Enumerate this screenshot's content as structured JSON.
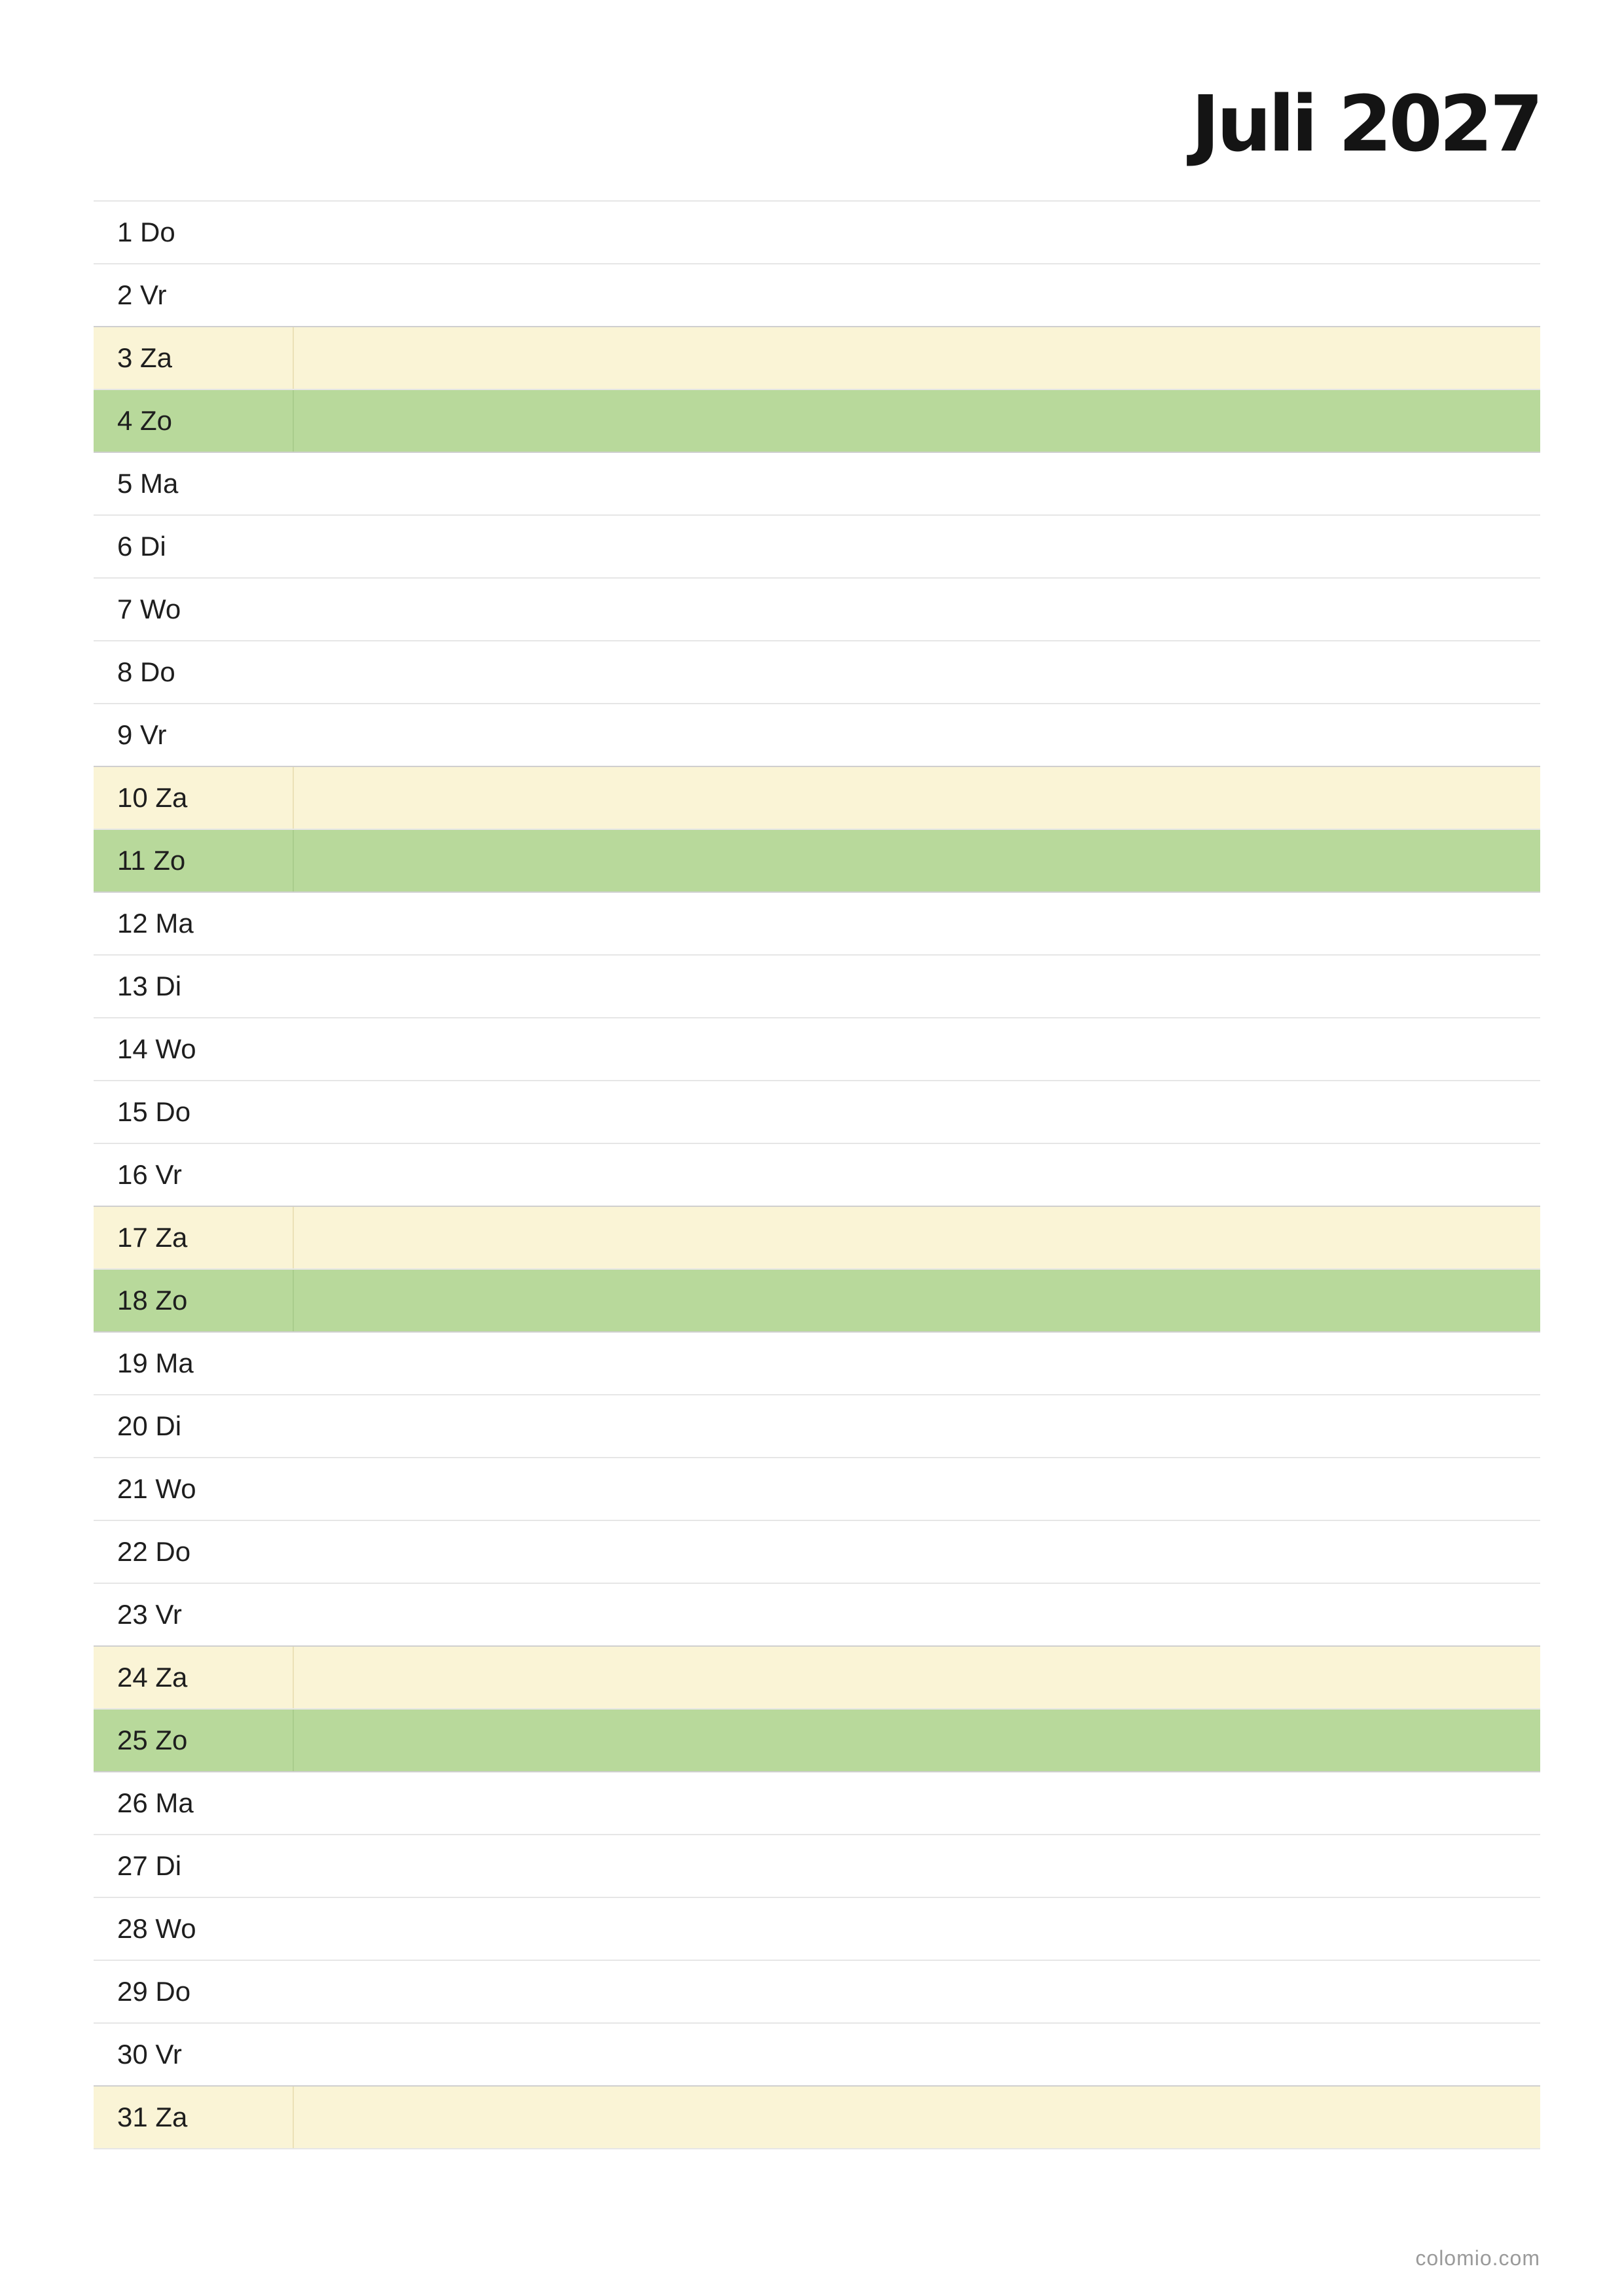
{
  "title": "Juli 2027",
  "footer": "colomio.com",
  "colors": {
    "saturday": "#faf4d6",
    "sunday": "#b8d99b",
    "divider": "#e6e6e6"
  },
  "days": [
    {
      "label": "1 Do",
      "type": "weekday"
    },
    {
      "label": "2 Vr",
      "type": "weekday"
    },
    {
      "label": "3 Za",
      "type": "sat"
    },
    {
      "label": "4 Zo",
      "type": "sun"
    },
    {
      "label": "5 Ma",
      "type": "weekday"
    },
    {
      "label": "6 Di",
      "type": "weekday"
    },
    {
      "label": "7 Wo",
      "type": "weekday"
    },
    {
      "label": "8 Do",
      "type": "weekday"
    },
    {
      "label": "9 Vr",
      "type": "weekday"
    },
    {
      "label": "10 Za",
      "type": "sat"
    },
    {
      "label": "11 Zo",
      "type": "sun"
    },
    {
      "label": "12 Ma",
      "type": "weekday"
    },
    {
      "label": "13 Di",
      "type": "weekday"
    },
    {
      "label": "14 Wo",
      "type": "weekday"
    },
    {
      "label": "15 Do",
      "type": "weekday"
    },
    {
      "label": "16 Vr",
      "type": "weekday"
    },
    {
      "label": "17 Za",
      "type": "sat"
    },
    {
      "label": "18 Zo",
      "type": "sun"
    },
    {
      "label": "19 Ma",
      "type": "weekday"
    },
    {
      "label": "20 Di",
      "type": "weekday"
    },
    {
      "label": "21 Wo",
      "type": "weekday"
    },
    {
      "label": "22 Do",
      "type": "weekday"
    },
    {
      "label": "23 Vr",
      "type": "weekday"
    },
    {
      "label": "24 Za",
      "type": "sat"
    },
    {
      "label": "25 Zo",
      "type": "sun"
    },
    {
      "label": "26 Ma",
      "type": "weekday"
    },
    {
      "label": "27 Di",
      "type": "weekday"
    },
    {
      "label": "28 Wo",
      "type": "weekday"
    },
    {
      "label": "29 Do",
      "type": "weekday"
    },
    {
      "label": "30 Vr",
      "type": "weekday"
    },
    {
      "label": "31 Za",
      "type": "sat"
    }
  ]
}
